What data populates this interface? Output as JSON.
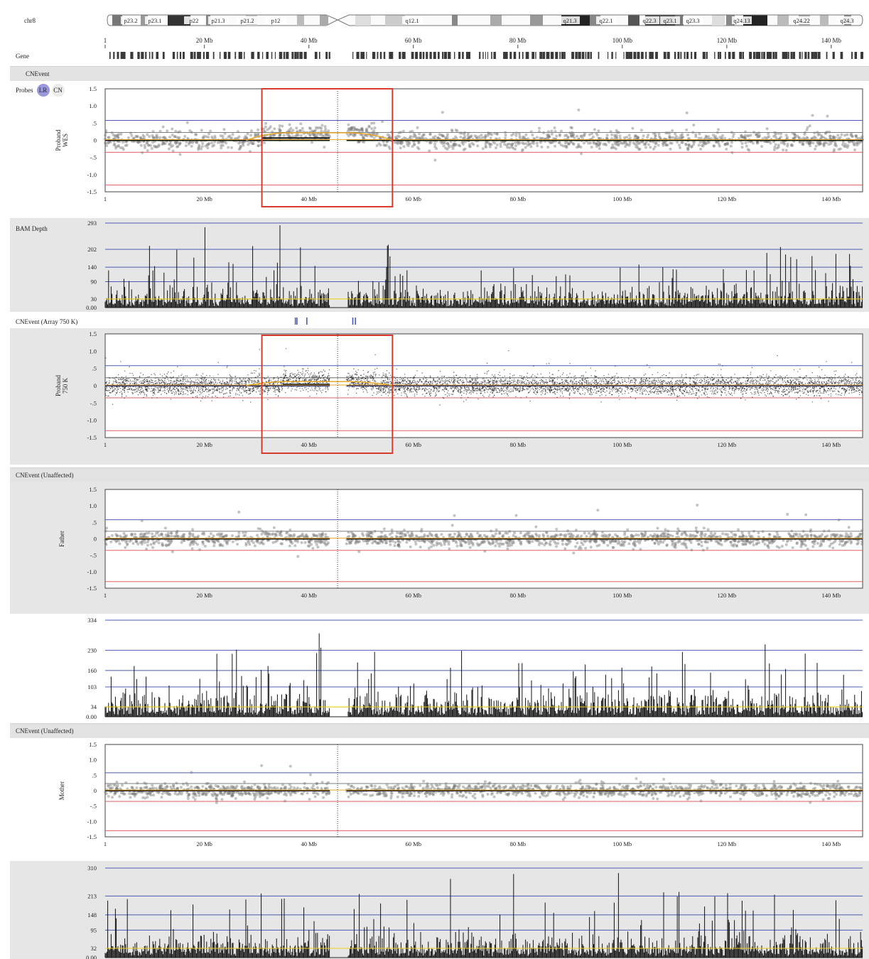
{
  "chromosome": "chr8",
  "ideogram": {
    "bands": [
      "p23.2",
      "p23.1",
      "p22",
      "p21.3",
      "p21.2",
      "p12",
      "q12.1",
      "q21.3",
      "q22.1",
      "q22.3",
      "q23.1",
      "q23.3",
      "q24.13",
      "q24.22",
      "q24.3"
    ]
  },
  "axis": {
    "ticks": [
      "1",
      "20 Mb",
      "40 Mb",
      "60 Mb",
      "80 Mb",
      "100 Mb",
      "120 Mb",
      "140 Mb"
    ],
    "min_mb": 1,
    "max_mb": 146,
    "centromere_mb": 45.5
  },
  "labels": {
    "gene": "Gene",
    "cnevent": "CNEvent",
    "probes": "Probes",
    "lr": "LR",
    "cn": "CN",
    "bam_depth": "BAM Depth",
    "cnevent_array": "CNEvent (Array 750 K)",
    "cnevent_unaffected_1": "CNEvent (Unaffected)",
    "cnevent_unaffected_2": "CNEvent (Unaffected)"
  },
  "log_ratio_ticks": [
    "1.5",
    "1.0",
    ".5",
    "0",
    "-.5",
    "-1.0",
    "-1.5"
  ],
  "highlight_region_mb": [
    31,
    56
  ],
  "colors": {
    "probe": "#7a7a7a",
    "segment": "#111111",
    "gain_line": "#e8a82a",
    "blue_line": "#4b5bb5",
    "red_line": "#e06060",
    "yellow_line": "#f0d020",
    "highlight": "#d83a2e",
    "depth_bar": "#111111"
  },
  "tracks": [
    {
      "id": "proband-wes",
      "name": "Proband\nWES",
      "type": "log_ratio",
      "gain_segment_mb": [
        31,
        53
      ],
      "gain_level": 0.22
    },
    {
      "id": "proband-depth",
      "name": "",
      "type": "depth",
      "ticks": [
        "293",
        "202",
        "140",
        "90",
        "30",
        "0.00"
      ]
    },
    {
      "id": "proband-750k",
      "name": "Proband\n750 K",
      "type": "log_ratio_array",
      "gain_segment_mb": [
        35,
        53
      ],
      "gain_level": 0.12
    },
    {
      "id": "father-lr",
      "name": "Father",
      "type": "log_ratio"
    },
    {
      "id": "father-depth",
      "name": "",
      "type": "depth",
      "ticks": [
        "334",
        "230",
        "160",
        "103",
        "34",
        "0.00"
      ]
    },
    {
      "id": "mother-lr",
      "name": "Mother",
      "type": "log_ratio"
    },
    {
      "id": "mother-depth",
      "name": "",
      "type": "depth",
      "ticks": [
        "310",
        "213",
        "148",
        "95",
        "32",
        "0.00"
      ]
    }
  ]
}
